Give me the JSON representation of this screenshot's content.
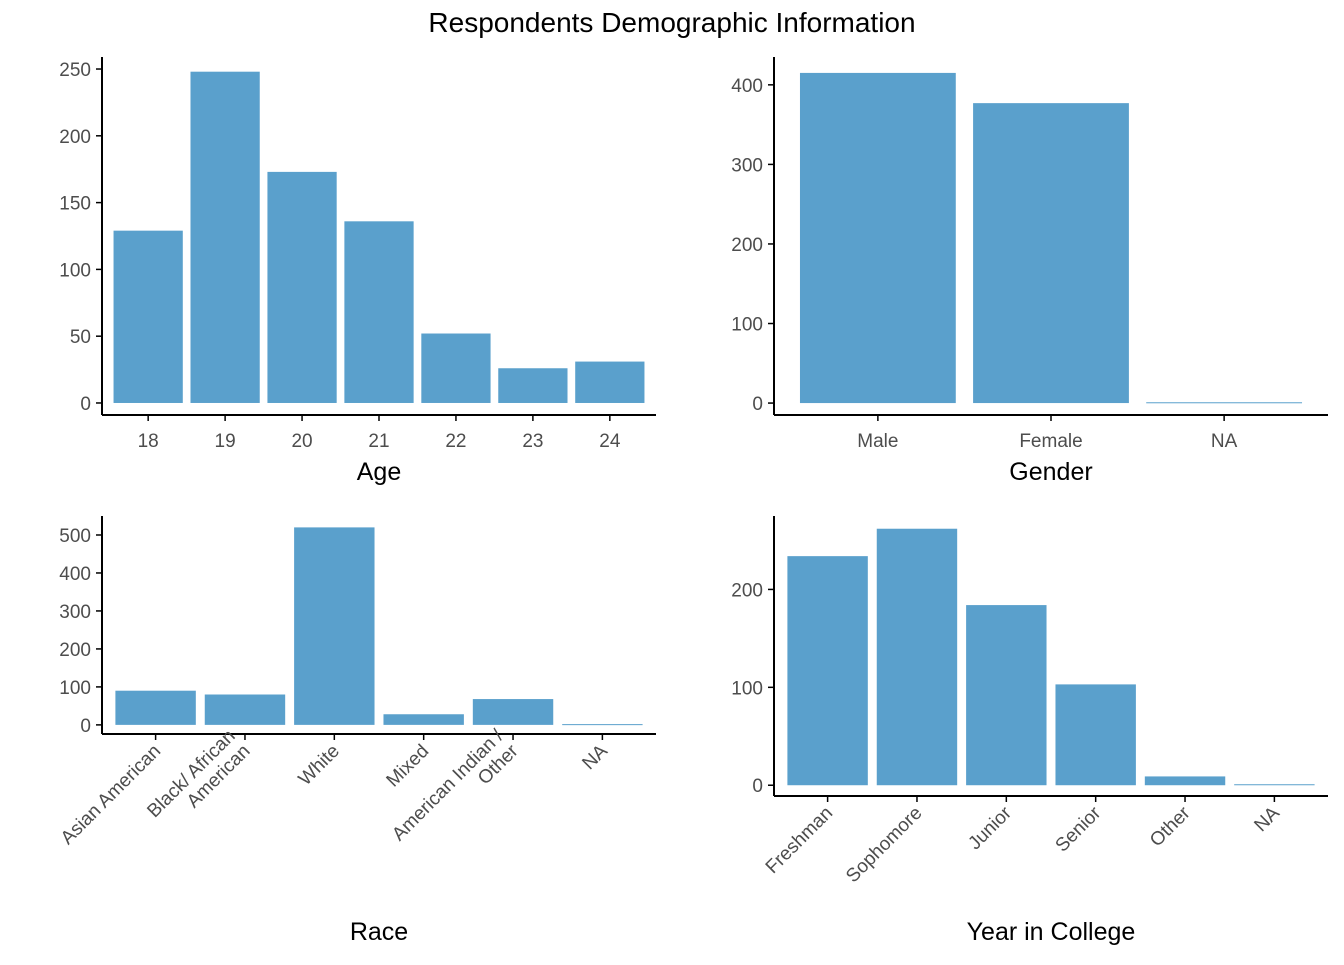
{
  "title": "Respondents Demographic Information",
  "colors": {
    "bar": "#5aa0cc",
    "axis": "#000000",
    "tick_label": "#4d4d4d"
  },
  "chart_data": [
    {
      "type": "bar",
      "xlabel": "Age",
      "ylabel": "",
      "categories": [
        "18",
        "19",
        "20",
        "21",
        "22",
        "23",
        "24"
      ],
      "values": [
        129,
        248,
        173,
        136,
        52,
        26,
        31
      ],
      "ylim": [
        -9,
        259
      ],
      "yticks": [
        0,
        50,
        100,
        150,
        200,
        250
      ],
      "rotate_labels": false
    },
    {
      "type": "bar",
      "xlabel": "Gender",
      "ylabel": "",
      "categories": [
        "Male",
        "Female",
        "NA"
      ],
      "values": [
        415,
        377,
        1
      ],
      "ylim": [
        -15,
        435
      ],
      "yticks": [
        0,
        100,
        200,
        300,
        400
      ],
      "rotate_labels": false
    },
    {
      "type": "bar",
      "xlabel": "Race",
      "ylabel": "",
      "categories": [
        "Asian American",
        "Black/ African American",
        "White",
        "Mixed",
        "American Indian / Other",
        "NA"
      ],
      "values": [
        90,
        80,
        520,
        28,
        68,
        2
      ],
      "ylim": [
        -24,
        550
      ],
      "yticks": [
        0,
        100,
        200,
        300,
        400,
        500
      ],
      "rotate_labels": true
    },
    {
      "type": "bar",
      "xlabel": "Year in College",
      "ylabel": "",
      "categories": [
        "Freshman",
        "Sophomore",
        "Junior",
        "Senior",
        "Other",
        "NA"
      ],
      "values": [
        234,
        262,
        184,
        103,
        9,
        1
      ],
      "ylim": [
        -11,
        275
      ],
      "yticks": [
        0,
        100,
        200
      ],
      "rotate_labels": true
    }
  ]
}
